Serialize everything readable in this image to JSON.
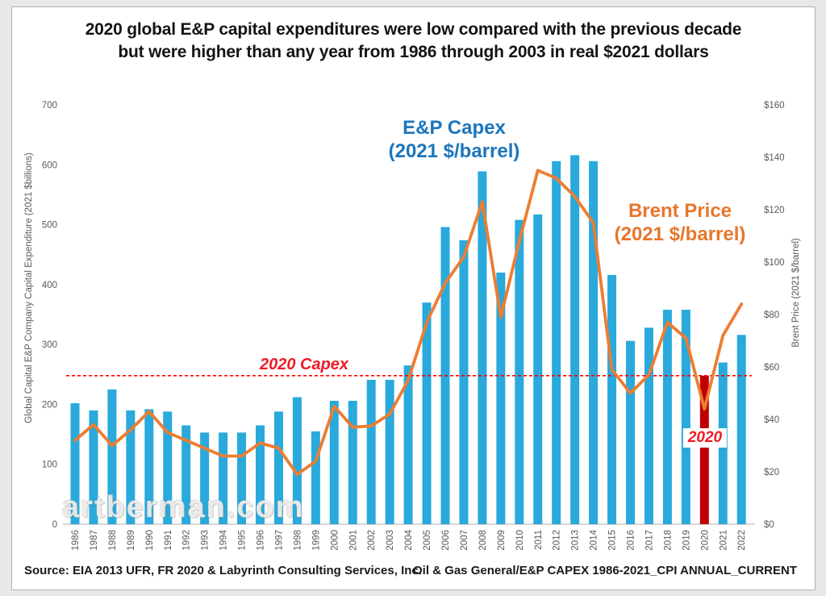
{
  "title": {
    "line1": "2020 global E&P capital expenditures were low compared with the previous decade",
    "line2": "but were higher than any year from 1986 through 2003 in real $2021 dollars"
  },
  "chart_data": {
    "type": "bar+line combo",
    "years": [
      1986,
      1987,
      1988,
      1989,
      1990,
      1991,
      1992,
      1993,
      1994,
      1995,
      1996,
      1997,
      1998,
      1999,
      2000,
      2001,
      2002,
      2003,
      2004,
      2005,
      2006,
      2007,
      2008,
      2009,
      2010,
      2011,
      2012,
      2013,
      2014,
      2015,
      2016,
      2017,
      2018,
      2019,
      2020,
      2021,
      2022
    ],
    "series": [
      {
        "name": "E&P Capex (2021 $/barrel)",
        "type": "bar",
        "axis": "left",
        "color": "#29a9dc",
        "highlight_year": 2020,
        "highlight_color": "#c00000",
        "values": [
          202,
          190,
          225,
          190,
          192,
          188,
          165,
          153,
          153,
          153,
          165,
          188,
          212,
          155,
          206,
          206,
          241,
          241,
          265,
          370,
          496,
          474,
          589,
          420,
          508,
          517,
          606,
          616,
          606,
          416,
          306,
          328,
          358,
          358,
          248,
          270,
          316
        ]
      },
      {
        "name": "Brent Price (2021 $/barrel)",
        "type": "line",
        "axis": "right",
        "color": "#ed7d31",
        "values": [
          32,
          38,
          30,
          36,
          43,
          35,
          32,
          29,
          26,
          26,
          31,
          29,
          19,
          24,
          45,
          37,
          37.5,
          42,
          55,
          77,
          92,
          102,
          123,
          79,
          108,
          135,
          132,
          125,
          115,
          59,
          50,
          57,
          77,
          71,
          44,
          72,
          84
        ]
      }
    ],
    "left_axis": {
      "label": "Global Capital E&P Company Capital Expenditure (2021 $billions)",
      "min": 0,
      "max": 700,
      "step": 100,
      "prefix": ""
    },
    "right_axis": {
      "label": "Brent Price (2021 $/barrel)",
      "min": 0,
      "max": 160,
      "step": 20,
      "prefix": "$"
    },
    "reference_line": {
      "value": 248,
      "color": "#ff0000",
      "label": "2020 Capex"
    },
    "grid": "off",
    "legend": "none (inline text labels)",
    "tick_color": "#595959",
    "axis_line_color": "#bfbfbf"
  },
  "annotations": {
    "capex_label_line1": "E&P Capex",
    "capex_label_line2": "(2021 $/barrel)",
    "brent_label_line1": "Brent Price",
    "brent_label_line2": "(2021 $/barrel)",
    "ref_line_label": "2020 Capex",
    "year_2020_label": "2020",
    "watermark": "artberman.com"
  },
  "footer": {
    "source": "Source: EIA 2013 UFR, FR 2020 & Labyrinth Consulting Services, Inc.",
    "file": "Oil & Gas General/E&P CAPEX 1986-2021_CPI ANNUAL_CURRENT"
  }
}
